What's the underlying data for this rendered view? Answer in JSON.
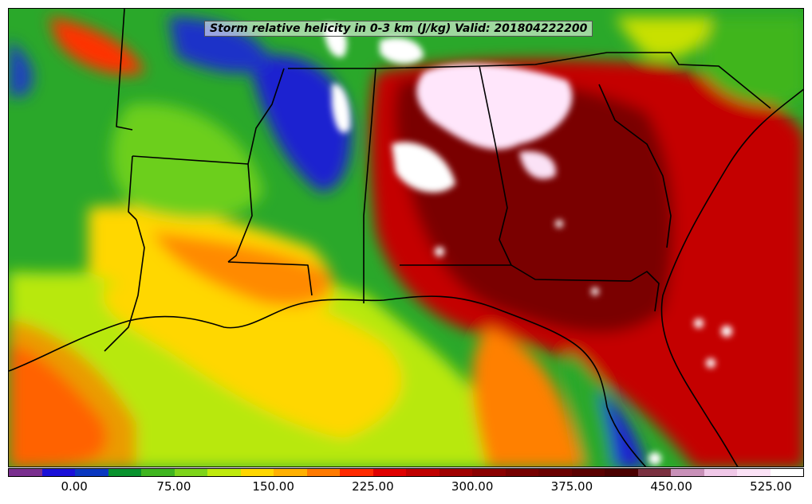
{
  "title": "Storm relative helicity in 0-3 km (J/kg) Valid: 201804222200",
  "colorbar": {
    "colors": [
      "#7a2f8f",
      "#1a10d8",
      "#0a38c0",
      "#08922e",
      "#3fb51f",
      "#7ed41a",
      "#c0ea0d",
      "#ffd700",
      "#ffb000",
      "#ff7a00",
      "#ff2a00",
      "#e00000",
      "#c00000",
      "#a00000",
      "#8a0000",
      "#760000",
      "#6a0000",
      "#5a0000",
      "#4a0000",
      "#7a3040",
      "#c890b8",
      "#f0c8e8",
      "#fbe2f6",
      "#ffffff"
    ],
    "tick_labels": [
      "0.00",
      "75.00",
      "150.00",
      "225.00",
      "300.00",
      "375.00",
      "450.00",
      "525.00"
    ]
  }
}
